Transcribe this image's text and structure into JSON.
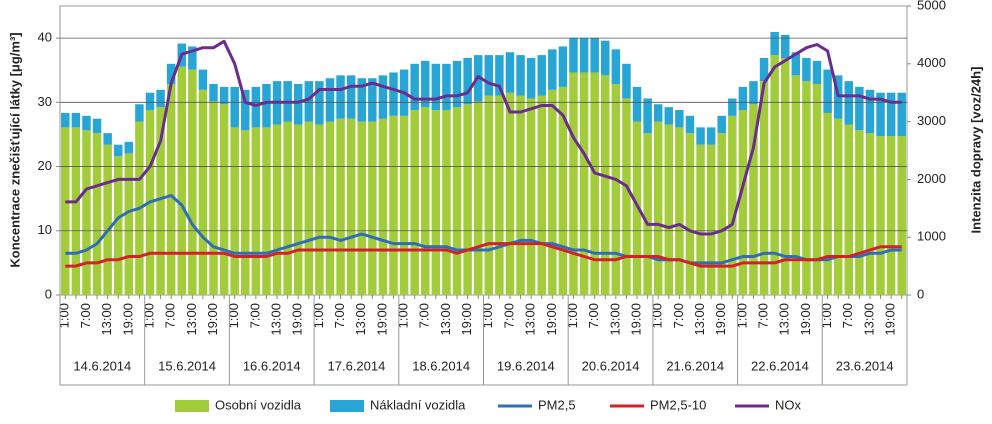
{
  "chart_data": {
    "type": "bar",
    "stacked": true,
    "grid": true,
    "legend": "bottom",
    "ylabel": "Koncentrace znečišťující látky [μg/m³]",
    "y2label": "Intenzita dopravy [voz/24h]",
    "ylim": [
      0,
      45
    ],
    "yticks": [
      0,
      10,
      20,
      30,
      40
    ],
    "y2lim": [
      0,
      5000
    ],
    "y2ticks": [
      0,
      1000,
      2000,
      3000,
      4000,
      5000
    ],
    "groups": [
      "14.6.2014",
      "15.6.2014",
      "16.6.2014",
      "17.6.2014",
      "18.6.2014",
      "19.6.2014",
      "20.6.2014",
      "21.6.2014",
      "22.6.2014",
      "23.6.2014"
    ],
    "categories": [
      "1:00",
      null,
      "7:00",
      null,
      "13:00",
      null,
      "19:00",
      null,
      "1:00",
      null,
      "7:00",
      null,
      "13:00",
      null,
      "19:00",
      null,
      "1:00",
      null,
      "7:00",
      null,
      "13:00",
      null,
      "19:00",
      null,
      "1:00",
      null,
      "7:00",
      null,
      "13:00",
      null,
      "19:00",
      null,
      "1:00",
      null,
      "7:00",
      null,
      "13:00",
      null,
      "19:00",
      null,
      "1:00",
      null,
      "7:00",
      null,
      "13:00",
      null,
      "19:00",
      null,
      "1:00",
      null,
      "7:00",
      null,
      "13:00",
      null,
      "19:00",
      null,
      "1:00",
      null,
      "7:00",
      null,
      "13:00",
      null,
      "19:00",
      null,
      "1:00",
      null,
      "7:00",
      null,
      "13:00",
      null,
      "19:00",
      null,
      "1:00",
      null,
      "7:00",
      null,
      "13:00",
      null,
      "19:00",
      null
    ],
    "series": [
      {
        "name": "Osobní vozidla",
        "type": "bar",
        "axis": "y2",
        "color": "#a3cc3a",
        "values": [
          2900,
          2900,
          2850,
          2800,
          2600,
          2400,
          2450,
          3000,
          3200,
          3250,
          3650,
          3950,
          3900,
          3550,
          3350,
          3300,
          2900,
          2850,
          2900,
          2900,
          2950,
          3000,
          2950,
          3000,
          2950,
          3000,
          3050,
          3050,
          3000,
          3000,
          3050,
          3100,
          3100,
          3200,
          3250,
          3200,
          3200,
          3250,
          3300,
          3350,
          3450,
          3450,
          3500,
          3450,
          3400,
          3450,
          3550,
          3600,
          3850,
          3850,
          3850,
          3800,
          3650,
          3400,
          3000,
          2800,
          3000,
          2950,
          2900,
          2800,
          2600,
          2600,
          2800,
          3100,
          3200,
          3300,
          3700,
          4150,
          4100,
          3800,
          3700,
          3650,
          3150,
          3050,
          2950,
          2850,
          2800,
          2750,
          2750,
          2750
        ]
      },
      {
        "name": "Nákladní vozidla",
        "type": "bar",
        "axis": "y2",
        "color": "#27a5d4",
        "values": [
          250,
          250,
          250,
          250,
          200,
          200,
          200,
          300,
          300,
          300,
          350,
          400,
          400,
          350,
          300,
          300,
          700,
          700,
          700,
          750,
          750,
          700,
          700,
          700,
          750,
          750,
          750,
          750,
          750,
          750,
          750,
          750,
          800,
          800,
          800,
          800,
          800,
          800,
          800,
          800,
          700,
          700,
          700,
          700,
          700,
          700,
          700,
          700,
          600,
          600,
          600,
          600,
          600,
          600,
          600,
          600,
          300,
          300,
          300,
          300,
          300,
          300,
          300,
          300,
          400,
          400,
          400,
          400,
          400,
          400,
          400,
          400,
          750,
          750,
          750,
          750,
          750,
          750,
          750,
          750
        ]
      },
      {
        "name": "PM2,5",
        "type": "line",
        "color": "#2f6db5",
        "values": [
          6.5,
          6.5,
          7,
          8,
          10,
          12,
          13,
          13.5,
          14.5,
          15,
          15.5,
          14,
          11,
          9,
          7.5,
          7,
          6.5,
          6.5,
          6.5,
          6.5,
          7,
          7.5,
          8,
          8.5,
          9,
          9,
          8.5,
          9,
          9.5,
          9,
          8.5,
          8,
          8,
          8,
          7.5,
          7.5,
          7.5,
          7,
          7,
          7,
          7,
          7.5,
          8,
          8.5,
          8.5,
          8,
          8,
          7.5,
          7,
          7,
          6.5,
          6.5,
          6.5,
          6,
          6,
          6,
          5.5,
          5.5,
          5.5,
          5,
          5,
          5,
          5,
          5.5,
          6,
          6,
          6.5,
          6.5,
          6,
          6,
          5.5,
          5.5,
          5.5,
          6,
          6,
          6,
          6.5,
          6.5,
          7,
          7
        ]
      },
      {
        "name": "PM2,5-10",
        "type": "line",
        "color": "#d3202a",
        "values": [
          4.5,
          4.5,
          5,
          5,
          5.5,
          5.5,
          6,
          6,
          6.5,
          6.5,
          6.5,
          6.5,
          6.5,
          6.5,
          6.5,
          6.5,
          6,
          6,
          6,
          6,
          6.5,
          6.5,
          7,
          7,
          7,
          7,
          7,
          7,
          7,
          7,
          7,
          7,
          7,
          7,
          7,
          7,
          7,
          6.5,
          7,
          7.5,
          8,
          8,
          8,
          8,
          8,
          8,
          7.5,
          7,
          6.5,
          6,
          5.5,
          5.5,
          5.5,
          6,
          6,
          6,
          6,
          5.5,
          5.5,
          5,
          4.5,
          4.5,
          4.5,
          4.5,
          5,
          5,
          5,
          5,
          5.5,
          5.5,
          5.5,
          5.5,
          6,
          6,
          6,
          6.5,
          7,
          7.5,
          7.5,
          7.5
        ]
      },
      {
        "name": "NOx",
        "type": "line",
        "color": "#6b2c8f",
        "values": [
          14.5,
          14.5,
          16.5,
          17,
          17.5,
          18,
          18,
          18,
          20,
          24,
          33,
          37.5,
          38,
          38.5,
          38.5,
          39.5,
          36,
          30,
          29.5,
          30,
          30,
          30,
          30,
          30.5,
          32,
          32,
          32,
          32.5,
          32.5,
          33,
          32.5,
          32,
          31.5,
          30.5,
          30.5,
          30.5,
          31,
          31,
          31.5,
          34,
          33,
          32.5,
          28.5,
          28.5,
          29,
          29.5,
          29.5,
          28,
          24.5,
          22,
          19,
          18.5,
          18,
          17,
          14,
          11,
          11,
          10.5,
          11,
          10,
          9.5,
          9.5,
          10,
          11,
          17,
          23,
          33,
          35.5,
          36.5,
          37.5,
          38.5,
          39,
          38,
          31,
          31,
          31,
          30.5,
          30.5,
          30,
          30
        ]
      }
    ]
  }
}
